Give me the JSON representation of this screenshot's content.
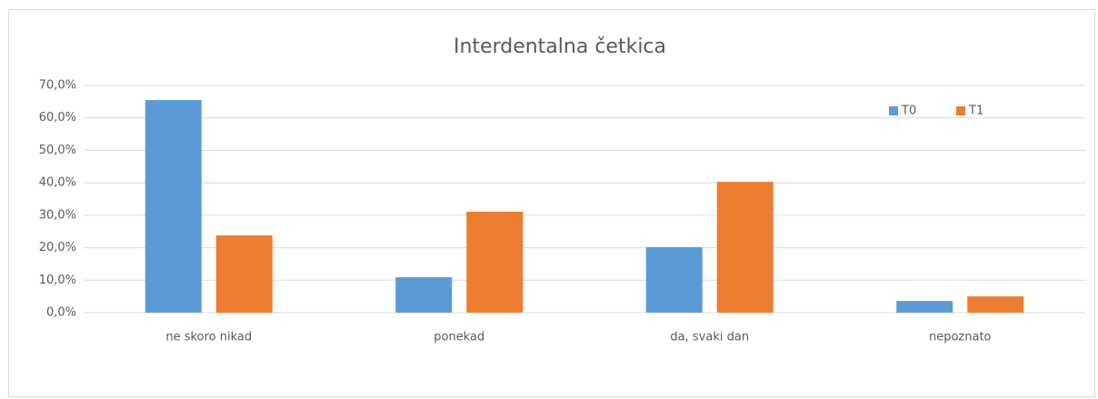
{
  "chart_data": {
    "type": "bar",
    "title": "Interdentalna četkica",
    "categories": [
      "ne skoro nikad",
      "ponekad",
      "da, svaki dan",
      "nepoznato"
    ],
    "series": [
      {
        "name": "T0",
        "color": "#5b9bd5",
        "values": [
          65.5,
          10.9,
          20.2,
          3.6
        ]
      },
      {
        "name": "T1",
        "color": "#ed7d31",
        "values": [
          23.8,
          31.1,
          40.3,
          5.0
        ]
      }
    ],
    "ylim": [
      0,
      70
    ],
    "yticks": [
      {
        "value": 0,
        "label": "0,0%"
      },
      {
        "value": 10,
        "label": "10,0%"
      },
      {
        "value": 20,
        "label": "20,0%"
      },
      {
        "value": 30,
        "label": "30,0%"
      },
      {
        "value": 40,
        "label": "40,0%"
      },
      {
        "value": 50,
        "label": "50,0%"
      },
      {
        "value": 60,
        "label": "60,0%"
      },
      {
        "value": 70,
        "label": "70,0%"
      }
    ],
    "grid": true,
    "legend": "upper right"
  }
}
